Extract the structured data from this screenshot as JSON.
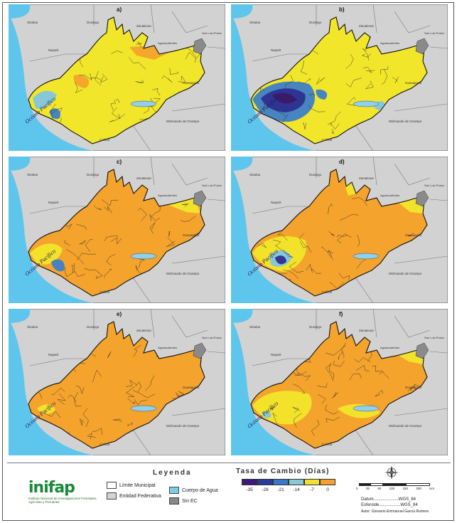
{
  "panels": [
    {
      "label": "a)",
      "style": "a"
    },
    {
      "label": "b)",
      "style": "b"
    },
    {
      "label": "c)",
      "style": "c"
    },
    {
      "label": "d)",
      "style": "d"
    },
    {
      "label": "e)",
      "style": "e"
    },
    {
      "label": "f)",
      "style": "f"
    }
  ],
  "map_labels": {
    "sinaloa": "Sinaloa",
    "durango": "Durango",
    "zacatecas": "Zacatecas",
    "nayarit": "Nayarit",
    "aguascalientes": "Aguascalientes",
    "san_luis_potosi": "San Luis Potosí",
    "guanajuato": "Guanajuato",
    "michoacan": "Michoacán de Ocampo",
    "colima": "Colima",
    "ocean": "Océano Pacífico"
  },
  "legend": {
    "title": "Leyenda",
    "items": [
      {
        "label": "Límite Municipal",
        "color": "#ffffff"
      },
      {
        "label": "Entidad Federativa",
        "color": "#d4d4d4"
      },
      {
        "label": "Cuerpo de Agua",
        "color": "#7ecbe8"
      },
      {
        "label": "Sin EC",
        "color": "#888888"
      }
    ]
  },
  "colorbar": {
    "title": "Tasa de Cambio (Días)",
    "ticks": [
      "-35",
      "-28",
      "-21",
      "-14",
      "-7",
      "0"
    ],
    "colors": [
      "#3a1a7a",
      "#2a3a9a",
      "#3a78c8",
      "#8ac8d8",
      "#f0e030",
      "#f5a030"
    ]
  },
  "logo": {
    "name": "inifap",
    "subtitle": "Instituto Nacional de Investigaciones Forestales, Agrícolas y Pecuarias"
  },
  "scale": {
    "ticks": [
      "0",
      "25",
      "50",
      "100",
      "150",
      "200"
    ],
    "units": "Km"
  },
  "meta": {
    "datum": "Datum.....................WGS_84",
    "esferoide": "Esferoide..................WGS_84",
    "autor": "Autor: Giovanni Emmanuel García Romero"
  },
  "colors": {
    "ocean": "#5ec6ec",
    "land": "#d2d2d2",
    "yellow": "#f2e62a",
    "orange": "#f4a32c",
    "blue_light": "#7fc6e0",
    "blue_mid": "#3d7fc8",
    "blue_dark": "#2e2f8f",
    "purple": "#3a1a6a",
    "lake": "#8fd0ec",
    "sin_ec": "#8a8a8a"
  }
}
